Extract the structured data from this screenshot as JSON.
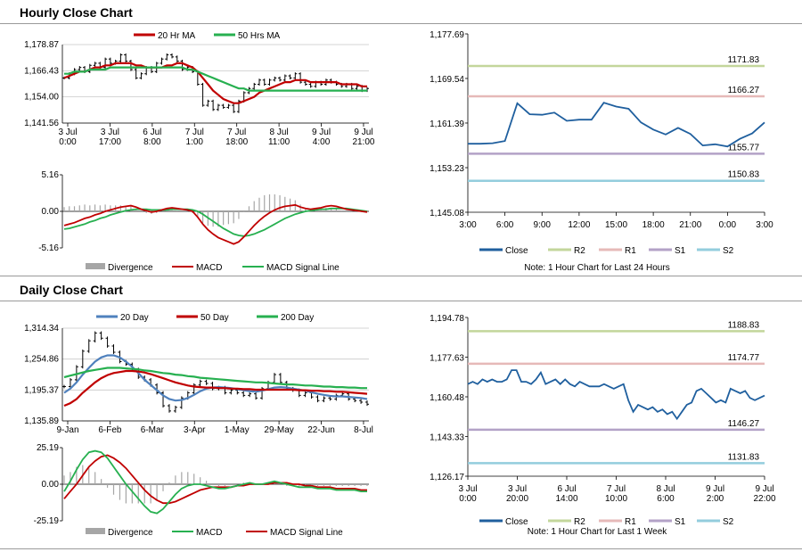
{
  "sections": {
    "hourly_title": "Hourly Close Chart",
    "daily_title": "Daily Close Chart"
  },
  "colors": {
    "close": "#1f5f9e",
    "r2": "#c3d69b",
    "r1": "#e6b9b8",
    "s1": "#b3a2c7",
    "s2": "#93cddd",
    "ma_red": "#c00000",
    "ma_green": "#27b050",
    "ma_blue": "#4f81bd",
    "divergence": "#a6a6a6",
    "macd_red": "#c00000",
    "signal_green": "#27b050"
  },
  "chart_data": [
    {
      "id": "hourly_price",
      "type": "ohlc",
      "x_tick_labels": [
        "3 Jul\n0:00",
        "3 Jul\n17:00",
        "6 Jul\n8:00",
        "7 Jul\n1:00",
        "7 Jul\n18:00",
        "8 Jul\n11:00",
        "9 Jul\n4:00",
        "9 Jul\n21:00"
      ],
      "y_tick_labels": [
        "1,178.87",
        "1,166.43",
        "1,154.00",
        "1,141.56"
      ],
      "ylim": [
        1141.56,
        1178.87
      ],
      "legend": [
        "20 Hr MA",
        "50 Hrs MA"
      ],
      "close": [
        1163,
        1165,
        1167,
        1168,
        1166,
        1169,
        1170,
        1168,
        1172,
        1170,
        1171,
        1174,
        1171,
        1167,
        1163,
        1165,
        1168,
        1166,
        1170,
        1172,
        1174,
        1173,
        1171,
        1167,
        1168,
        1166,
        1160,
        1150,
        1152,
        1148,
        1150,
        1149,
        1150,
        1147,
        1152,
        1156,
        1158,
        1160,
        1162,
        1160,
        1162,
        1163,
        1162,
        1164,
        1163,
        1165,
        1161,
        1160,
        1159,
        1161,
        1160,
        1162,
        1161,
        1160,
        1159,
        1160,
        1158,
        1159,
        1157,
        1158
      ],
      "series": [
        {
          "name": "20 Hr MA",
          "values": [
            1163,
            1164,
            1165,
            1166,
            1166,
            1167,
            1168,
            1168,
            1169,
            1169,
            1170,
            1170,
            1170,
            1170,
            1169,
            1169,
            1168,
            1168,
            1168,
            1168,
            1169,
            1169,
            1170,
            1170,
            1169,
            1168,
            1166,
            1163,
            1160,
            1157,
            1155,
            1153,
            1152,
            1151,
            1151,
            1152,
            1153,
            1154,
            1156,
            1157,
            1158,
            1159,
            1160,
            1161,
            1161,
            1162,
            1162,
            1162,
            1161,
            1161,
            1161,
            1161,
            1161,
            1161,
            1160,
            1160,
            1160,
            1160,
            1159,
            1159
          ]
        },
        {
          "name": "50 Hrs MA",
          "values": [
            1165,
            1165,
            1166,
            1166,
            1166,
            1167,
            1167,
            1167,
            1167,
            1168,
            1168,
            1168,
            1168,
            1168,
            1168,
            1168,
            1168,
            1168,
            1168,
            1168,
            1168,
            1168,
            1168,
            1168,
            1167,
            1167,
            1166,
            1165,
            1164,
            1163,
            1162,
            1161,
            1160,
            1159,
            1158,
            1158,
            1157,
            1157,
            1157,
            1157,
            1157,
            1157,
            1157,
            1157,
            1157,
            1157,
            1157,
            1157,
            1157,
            1157,
            1157,
            1157,
            1157,
            1157,
            1157,
            1157,
            1157,
            1157,
            1157,
            1157
          ]
        }
      ]
    },
    {
      "id": "hourly_macd",
      "type": "macd",
      "y_tick_labels": [
        "5.16",
        "0.00",
        "-5.16"
      ],
      "ylim": [
        -5.16,
        5.16
      ],
      "legend": [
        "Divergence",
        "MACD",
        "MACD Signal Line"
      ],
      "series": [
        {
          "name": "MACD",
          "values": [
            -2.0,
            -1.8,
            -1.6,
            -1.3,
            -1.0,
            -0.8,
            -0.5,
            -0.3,
            0.0,
            0.2,
            0.4,
            0.6,
            0.7,
            0.8,
            0.6,
            0.3,
            0.1,
            -0.1,
            0.0,
            0.2,
            0.4,
            0.5,
            0.4,
            0.3,
            0.2,
            0.0,
            -0.8,
            -1.8,
            -2.6,
            -3.2,
            -3.7,
            -4.0,
            -4.3,
            -4.6,
            -4.3,
            -3.6,
            -2.8,
            -2.0,
            -1.3,
            -0.7,
            -0.2,
            0.2,
            0.5,
            0.7,
            0.8,
            0.9,
            0.6,
            0.4,
            0.3,
            0.4,
            0.5,
            0.7,
            0.8,
            0.7,
            0.5,
            0.3,
            0.2,
            0.1,
            0.0,
            -0.1
          ]
        },
        {
          "name": "MACD Signal Line",
          "values": [
            -2.5,
            -2.4,
            -2.2,
            -2.0,
            -1.8,
            -1.5,
            -1.3,
            -1.0,
            -0.8,
            -0.5,
            -0.3,
            -0.1,
            0.1,
            0.2,
            0.3,
            0.3,
            0.3,
            0.2,
            0.2,
            0.2,
            0.2,
            0.3,
            0.3,
            0.3,
            0.3,
            0.2,
            0.0,
            -0.4,
            -0.9,
            -1.4,
            -1.9,
            -2.4,
            -2.8,
            -3.2,
            -3.4,
            -3.5,
            -3.4,
            -3.2,
            -2.9,
            -2.6,
            -2.2,
            -1.8,
            -1.4,
            -1.0,
            -0.7,
            -0.4,
            -0.2,
            0.0,
            0.1,
            0.2,
            0.3,
            0.3,
            0.4,
            0.4,
            0.4,
            0.4,
            0.3,
            0.2,
            0.1,
            0.0
          ]
        }
      ]
    },
    {
      "id": "hourly_close_24h",
      "type": "line",
      "x_tick_labels": [
        "3:00",
        "6:00",
        "9:00",
        "12:00",
        "15:00",
        "18:00",
        "21:00",
        "0:00",
        "3:00"
      ],
      "y_tick_labels": [
        "1,177.69",
        "1,169.54",
        "1,161.39",
        "1,153.23",
        "1,145.08"
      ],
      "ylim": [
        1145.08,
        1177.69
      ],
      "x": [
        0,
        1,
        2,
        3,
        4,
        5,
        6,
        7,
        8,
        9,
        10,
        11,
        12,
        13,
        14,
        15,
        16,
        17,
        18,
        19,
        20,
        21,
        22,
        23,
        24
      ],
      "values": [
        1157.6,
        1157.6,
        1157.7,
        1158.1,
        1165.0,
        1163.0,
        1162.9,
        1163.3,
        1161.8,
        1162.0,
        1162.0,
        1165.1,
        1164.4,
        1164.0,
        1161.5,
        1160.2,
        1159.3,
        1160.5,
        1159.4,
        1157.3,
        1157.5,
        1157.1,
        1158.5,
        1159.5,
        1161.5
      ],
      "levels": [
        {
          "name": "R2",
          "value": 1171.83,
          "label": "1171.83"
        },
        {
          "name": "R1",
          "value": 1166.27,
          "label": "1166.27"
        },
        {
          "name": "S1",
          "value": 1155.77,
          "label": "1155.77"
        },
        {
          "name": "S2",
          "value": 1150.83,
          "label": "1150.83"
        }
      ],
      "legend": [
        "Close",
        "R2",
        "R1",
        "S1",
        "S2"
      ],
      "note": "Note: 1 Hour Chart for Last 24 Hours"
    },
    {
      "id": "daily_price",
      "type": "ohlc",
      "x_tick_labels": [
        "9-Jan",
        "6-Feb",
        "6-Mar",
        "3-Apr",
        "1-May",
        "29-May",
        "22-Jun",
        "8-Jul"
      ],
      "y_tick_labels": [
        "1,314.34",
        "1,254.86",
        "1,195.37",
        "1,135.89"
      ],
      "ylim": [
        1135.89,
        1314.34
      ],
      "legend": [
        "20 Day",
        "50 Day",
        "200 Day"
      ],
      "close": [
        1202,
        1215,
        1240,
        1270,
        1290,
        1305,
        1295,
        1280,
        1268,
        1250,
        1245,
        1235,
        1220,
        1215,
        1205,
        1190,
        1165,
        1155,
        1162,
        1180,
        1190,
        1205,
        1212,
        1208,
        1198,
        1200,
        1190,
        1195,
        1190,
        1185,
        1188,
        1180,
        1198,
        1210,
        1225,
        1210,
        1198,
        1195,
        1185,
        1190,
        1182,
        1175,
        1180,
        1178,
        1185,
        1188,
        1178,
        1175,
        1172,
        1168
      ],
      "series": [
        {
          "name": "20 Day",
          "values": [
            1190,
            1198,
            1210,
            1225,
            1238,
            1250,
            1258,
            1262,
            1262,
            1258,
            1250,
            1240,
            1228,
            1215,
            1205,
            1195,
            1185,
            1178,
            1175,
            1176,
            1180,
            1186,
            1193,
            1198,
            1200,
            1201,
            1200,
            1199,
            1197,
            1195,
            1193,
            1192,
            1194,
            1197,
            1200,
            1201,
            1200,
            1198,
            1196,
            1194,
            1191,
            1188,
            1186,
            1184,
            1183,
            1183,
            1182,
            1181,
            1180,
            1178
          ]
        },
        {
          "name": "50 Day",
          "values": [
            1165,
            1170,
            1178,
            1190,
            1200,
            1210,
            1218,
            1224,
            1228,
            1230,
            1232,
            1232,
            1231,
            1229,
            1226,
            1222,
            1218,
            1214,
            1210,
            1207,
            1204,
            1202,
            1201,
            1200,
            1200,
            1199,
            1199,
            1198,
            1198,
            1197,
            1197,
            1196,
            1196,
            1196,
            1196,
            1196,
            1196,
            1196,
            1195,
            1195,
            1194,
            1194,
            1193,
            1193,
            1192,
            1192,
            1191,
            1190,
            1189,
            1188
          ]
        },
        {
          "name": "200 Day",
          "values": [
            1220,
            1223,
            1226,
            1229,
            1232,
            1234,
            1236,
            1238,
            1238,
            1238,
            1237,
            1236,
            1235,
            1233,
            1232,
            1230,
            1228,
            1227,
            1225,
            1224,
            1222,
            1221,
            1219,
            1218,
            1217,
            1216,
            1215,
            1214,
            1213,
            1212,
            1211,
            1210,
            1210,
            1209,
            1208,
            1207,
            1206,
            1206,
            1205,
            1204,
            1204,
            1203,
            1202,
            1202,
            1201,
            1201,
            1200,
            1200,
            1199,
            1199
          ]
        }
      ]
    },
    {
      "id": "daily_macd",
      "type": "macd",
      "y_tick_labels": [
        "25.19",
        "0.00",
        "-25.19"
      ],
      "ylim": [
        -25.19,
        25.19
      ],
      "legend": [
        "Divergence",
        "MACD",
        "MACD Signal Line"
      ],
      "series": [
        {
          "name": "MACD",
          "values": [
            -5,
            2,
            10,
            17,
            22,
            23,
            22,
            18,
            12,
            6,
            0,
            -5,
            -10,
            -15,
            -19,
            -20,
            -17,
            -12,
            -7,
            -3,
            -1,
            0,
            0,
            -1,
            -2,
            -3,
            -3,
            -2,
            -1,
            0,
            1,
            0,
            0,
            1,
            2,
            1,
            0,
            -1,
            -2,
            -2,
            -2,
            -3,
            -3,
            -3,
            -4,
            -4,
            -4,
            -4,
            -5,
            -5
          ]
        },
        {
          "name": "MACD Signal Line",
          "values": [
            -10,
            -5,
            0,
            6,
            12,
            16,
            19,
            20,
            18,
            15,
            11,
            6,
            1,
            -4,
            -8,
            -11,
            -13,
            -13,
            -12,
            -10,
            -8,
            -6,
            -4,
            -3,
            -2,
            -2,
            -2,
            -2,
            -1,
            -1,
            0,
            0,
            0,
            0,
            1,
            1,
            1,
            0,
            0,
            -1,
            -1,
            -2,
            -2,
            -2,
            -3,
            -3,
            -3,
            -3,
            -4,
            -4
          ]
        }
      ]
    },
    {
      "id": "daily_close_week",
      "type": "line",
      "x_tick_labels": [
        "3 Jul\n0:00",
        "3 Jul\n20:00",
        "6 Jul\n14:00",
        "7 Jul\n10:00",
        "8 Jul\n6:00",
        "9 Jul\n2:00",
        "9 Jul\n22:00"
      ],
      "y_tick_labels": [
        "1,194.78",
        "1,177.63",
        "1,160.48",
        "1,143.33",
        "1,126.17"
      ],
      "ylim": [
        1126.17,
        1194.78
      ],
      "values": [
        1166,
        1167,
        1166,
        1168,
        1167,
        1168,
        1167,
        1167,
        1168,
        1172,
        1172,
        1167,
        1167,
        1166,
        1168,
        1171,
        1166,
        1167,
        1168,
        1166,
        1168,
        1166,
        1165,
        1167,
        1166,
        1165,
        1165,
        1165,
        1166,
        1165,
        1164,
        1165,
        1166,
        1159,
        1154,
        1157,
        1156,
        1155,
        1156,
        1154,
        1155,
        1153,
        1154,
        1151,
        1154,
        1157,
        1158,
        1163,
        1164,
        1162,
        1160,
        1158,
        1159,
        1158,
        1164,
        1163,
        1162,
        1163,
        1160,
        1159,
        1160,
        1161
      ],
      "levels": [
        {
          "name": "R2",
          "value": 1188.83,
          "label": "1188.83"
        },
        {
          "name": "R1",
          "value": 1174.77,
          "label": "1174.77"
        },
        {
          "name": "S1",
          "value": 1146.27,
          "label": "1146.27"
        },
        {
          "name": "S2",
          "value": 1131.83,
          "label": "1131.83"
        }
      ],
      "legend": [
        "Close",
        "R2",
        "R1",
        "S1",
        "S2"
      ],
      "note": "Note: 1 Hour Chart for Last 1 Week"
    }
  ]
}
